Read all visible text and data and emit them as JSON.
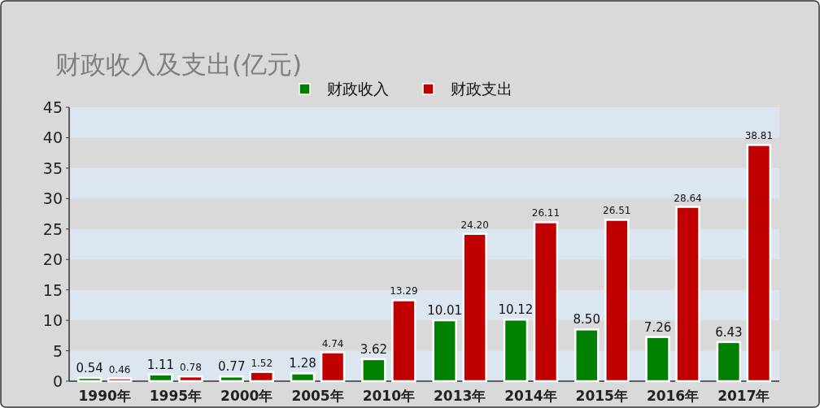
{
  "chart_data": {
    "type": "bar",
    "title": "财政收入及支出(亿元)",
    "categories": [
      "1990年",
      "1995年",
      "2000年",
      "2005年",
      "2010年",
      "2013年",
      "2014年",
      "2015年",
      "2016年",
      "2017年"
    ],
    "series": [
      {
        "name": "财政收入",
        "color": "#008000",
        "values": [
          0.54,
          1.11,
          0.77,
          1.28,
          3.62,
          10.01,
          10.12,
          8.5,
          7.26,
          6.43
        ],
        "value_labels": [
          "0.54",
          "1.11",
          "0.77",
          "1.28",
          "3.62",
          "10.01",
          "10.12",
          "8.50",
          "7.26",
          "6.43"
        ]
      },
      {
        "name": "财政支出",
        "color": "#c00000",
        "values": [
          0.46,
          0.78,
          1.52,
          4.74,
          13.29,
          24.2,
          26.11,
          26.51,
          28.64,
          38.81
        ],
        "value_labels": [
          "0.46",
          "0.78",
          "1.52",
          "4.74",
          "13.29",
          "24.20",
          "26.11",
          "26.51",
          "28.64",
          "38.81"
        ]
      }
    ],
    "ylim": [
      0,
      45
    ],
    "yticks": [
      0,
      5,
      10,
      15,
      20,
      25,
      30,
      35,
      40,
      45
    ],
    "legend": "top",
    "bands": [
      {
        "axis": "y",
        "from": 0,
        "to": 5,
        "color": "#dce6f1"
      },
      {
        "axis": "y",
        "from": 10,
        "to": 15,
        "color": "#dce6f1"
      },
      {
        "axis": "y",
        "from": 20,
        "to": 25,
        "color": "#dce6f1"
      },
      {
        "axis": "y",
        "from": 30,
        "to": 35,
        "color": "#dce6f1"
      },
      {
        "axis": "y",
        "from": 40,
        "to": 45,
        "color": "#dce6f1"
      }
    ]
  }
}
